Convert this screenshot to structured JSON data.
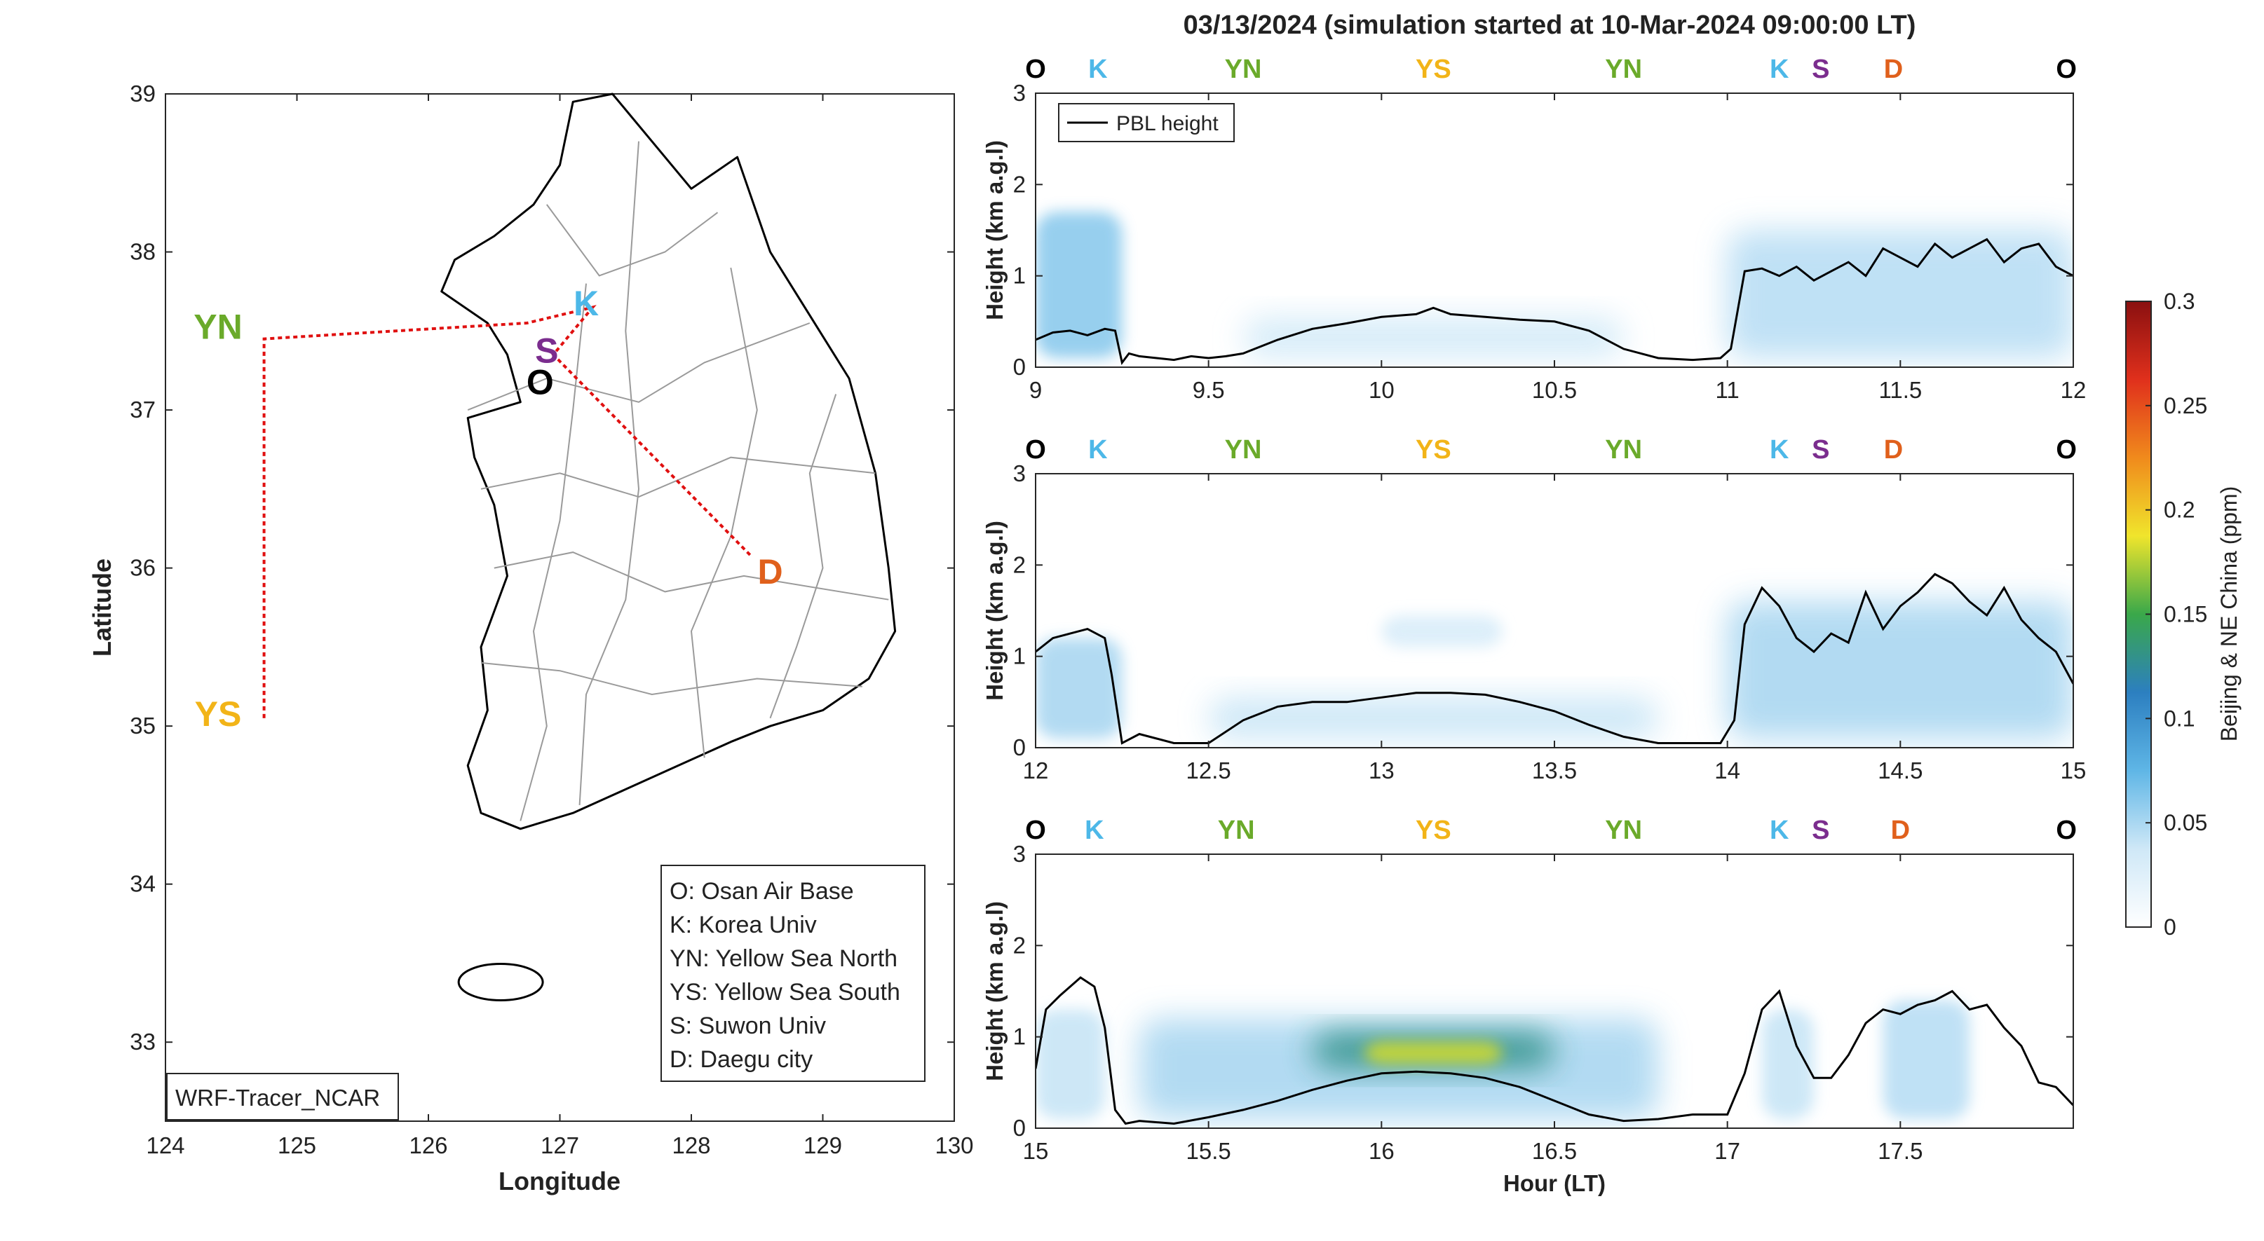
{
  "figure_title": "03/13/2024 (simulation started at 10-Mar-2024 09:00:00 LT)",
  "map": {
    "xlabel": "Longitude",
    "ylabel": "Latitude",
    "xticks": [
      124,
      125,
      126,
      127,
      128,
      129,
      130
    ],
    "yticks": [
      33,
      34,
      35,
      36,
      37,
      38,
      39
    ],
    "xlim": [
      124,
      130
    ],
    "ylim": [
      32.5,
      39
    ],
    "tag": "WRF-Tracer_NCAR",
    "sites": [
      {
        "code": "K",
        "lon": 127.2,
        "lat": 37.6,
        "color": "#4db8e8"
      },
      {
        "code": "S",
        "lon": 126.9,
        "lat": 37.3,
        "color": "#7b2d8e"
      },
      {
        "code": "O",
        "lon": 126.85,
        "lat": 37.1,
        "color": "#000000"
      },
      {
        "code": "YN",
        "lon": 124.4,
        "lat": 37.45,
        "color": "#6aaa2a"
      },
      {
        "code": "YS",
        "lon": 124.4,
        "lat": 35.0,
        "color": "#f2b418"
      },
      {
        "code": "D",
        "lon": 128.6,
        "lat": 35.9,
        "color": "#e0601c"
      }
    ],
    "legend": [
      "O: Osan Air Base",
      "K: Korea Univ",
      "YN: Yellow Sea North",
      "YS: Yellow Sea South",
      "S: Suwon Univ",
      "D: Daegu city"
    ]
  },
  "chart_data": [
    {
      "type": "line",
      "panel": 1,
      "xlabel": "",
      "ylabel": "Height (km a.g.l)",
      "xlim": [
        9,
        12
      ],
      "ylim": [
        0,
        3
      ],
      "xticks": [
        9,
        9.5,
        10,
        10.5,
        11,
        11.5,
        12
      ],
      "xtick_labels": [
        "9",
        "9.5",
        "10",
        "10.5",
        "11",
        "11.5",
        "12"
      ],
      "yticks": [
        0,
        1,
        2,
        3
      ],
      "legend": "PBL height",
      "top_labels": [
        {
          "t": "O",
          "x": 9.0,
          "color": "#000000"
        },
        {
          "t": "K",
          "x": 9.18,
          "color": "#4db8e8"
        },
        {
          "t": "YN",
          "x": 9.6,
          "color": "#6aaa2a"
        },
        {
          "t": "YS",
          "x": 10.15,
          "color": "#f2b418"
        },
        {
          "t": "YN",
          "x": 10.7,
          "color": "#6aaa2a"
        },
        {
          "t": "K",
          "x": 11.15,
          "color": "#4db8e8"
        },
        {
          "t": "S",
          "x": 11.27,
          "color": "#7b2d8e"
        },
        {
          "t": "D",
          "x": 11.48,
          "color": "#e0601c"
        },
        {
          "t": "O",
          "x": 11.98,
          "color": "#000000"
        }
      ],
      "series": [
        {
          "name": "PBL height",
          "x": [
            9.0,
            9.05,
            9.1,
            9.15,
            9.2,
            9.23,
            9.25,
            9.27,
            9.3,
            9.35,
            9.4,
            9.45,
            9.5,
            9.55,
            9.6,
            9.7,
            9.8,
            9.9,
            10.0,
            10.1,
            10.15,
            10.2,
            10.3,
            10.4,
            10.5,
            10.6,
            10.65,
            10.7,
            10.8,
            10.9,
            10.98,
            11.01,
            11.05,
            11.1,
            11.15,
            11.2,
            11.25,
            11.3,
            11.35,
            11.4,
            11.45,
            11.5,
            11.55,
            11.6,
            11.65,
            11.7,
            11.75,
            11.8,
            11.85,
            11.9,
            11.95,
            12.0
          ],
          "y": [
            0.3,
            0.38,
            0.4,
            0.35,
            0.42,
            0.4,
            0.05,
            0.15,
            0.12,
            0.1,
            0.08,
            0.12,
            0.1,
            0.12,
            0.15,
            0.3,
            0.42,
            0.48,
            0.55,
            0.58,
            0.65,
            0.58,
            0.55,
            0.52,
            0.5,
            0.4,
            0.3,
            0.2,
            0.1,
            0.08,
            0.1,
            0.2,
            1.05,
            1.08,
            1.0,
            1.1,
            0.95,
            1.05,
            1.15,
            1.0,
            1.3,
            1.2,
            1.1,
            1.35,
            1.2,
            1.3,
            1.4,
            1.15,
            1.3,
            1.35,
            1.1,
            1.0
          ]
        }
      ],
      "tracer_blobs": [
        {
          "x0": 9.0,
          "x1": 9.25,
          "y0": 0.1,
          "y1": 1.7,
          "c": 0.06
        },
        {
          "x0": 9.6,
          "x1": 10.7,
          "y0": 0.1,
          "y1": 0.55,
          "c": 0.035
        },
        {
          "x0": 11.0,
          "x1": 12.0,
          "y0": 0.1,
          "y1": 1.5,
          "c": 0.045
        }
      ]
    },
    {
      "type": "line",
      "panel": 2,
      "xlabel": "",
      "ylabel": "Height (km a.g.l)",
      "xlim": [
        12,
        15
      ],
      "ylim": [
        0,
        3
      ],
      "xticks": [
        12,
        12.5,
        13,
        13.5,
        14,
        14.5,
        15
      ],
      "xtick_labels": [
        "12",
        "12.5",
        "13",
        "13.5",
        "14",
        "14.5",
        "15"
      ],
      "yticks": [
        0,
        1,
        2,
        3
      ],
      "top_labels": [
        {
          "t": "O",
          "x": 12.0,
          "color": "#000000"
        },
        {
          "t": "K",
          "x": 12.18,
          "color": "#4db8e8"
        },
        {
          "t": "YN",
          "x": 12.6,
          "color": "#6aaa2a"
        },
        {
          "t": "YS",
          "x": 13.15,
          "color": "#f2b418"
        },
        {
          "t": "YN",
          "x": 13.7,
          "color": "#6aaa2a"
        },
        {
          "t": "K",
          "x": 14.15,
          "color": "#4db8e8"
        },
        {
          "t": "S",
          "x": 14.27,
          "color": "#7b2d8e"
        },
        {
          "t": "D",
          "x": 14.48,
          "color": "#e0601c"
        },
        {
          "t": "O",
          "x": 14.98,
          "color": "#000000"
        }
      ],
      "series": [
        {
          "name": "PBL height",
          "x": [
            12.0,
            12.05,
            12.1,
            12.15,
            12.2,
            12.22,
            12.25,
            12.3,
            12.35,
            12.4,
            12.5,
            12.6,
            12.7,
            12.8,
            12.9,
            13.0,
            13.1,
            13.2,
            13.3,
            13.4,
            13.5,
            13.6,
            13.7,
            13.8,
            13.9,
            13.98,
            14.02,
            14.05,
            14.1,
            14.15,
            14.2,
            14.25,
            14.3,
            14.35,
            14.4,
            14.45,
            14.5,
            14.55,
            14.6,
            14.65,
            14.7,
            14.75,
            14.8,
            14.85,
            14.9,
            14.95,
            15.0
          ],
          "y": [
            1.05,
            1.2,
            1.25,
            1.3,
            1.2,
            0.8,
            0.05,
            0.15,
            0.1,
            0.05,
            0.05,
            0.3,
            0.45,
            0.5,
            0.5,
            0.55,
            0.6,
            0.6,
            0.58,
            0.5,
            0.4,
            0.25,
            0.12,
            0.05,
            0.05,
            0.05,
            0.3,
            1.35,
            1.75,
            1.55,
            1.2,
            1.05,
            1.25,
            1.15,
            1.7,
            1.3,
            1.55,
            1.7,
            1.9,
            1.8,
            1.6,
            1.45,
            1.75,
            1.4,
            1.2,
            1.05,
            0.7
          ]
        }
      ],
      "tracer_blobs": [
        {
          "x0": 12.0,
          "x1": 12.25,
          "y0": 0.1,
          "y1": 1.2,
          "c": 0.05
        },
        {
          "x0": 12.5,
          "x1": 13.8,
          "y0": 0.1,
          "y1": 0.55,
          "c": 0.04
        },
        {
          "x0": 13.0,
          "x1": 13.35,
          "y0": 1.1,
          "y1": 1.45,
          "c": 0.03
        },
        {
          "x0": 14.0,
          "x1": 15.0,
          "y0": 0.1,
          "y1": 1.6,
          "c": 0.05
        }
      ]
    },
    {
      "type": "line",
      "panel": 3,
      "xlabel": "Hour (LT)",
      "ylabel": "Height (km a.g.l)",
      "xlim": [
        15,
        18
      ],
      "ylim": [
        0,
        3
      ],
      "xticks": [
        15,
        15.5,
        16,
        16.5,
        17,
        17.5
      ],
      "xtick_labels": [
        "15",
        "15.5",
        "16",
        "16.5",
        "17",
        "17.5"
      ],
      "yticks": [
        0,
        1,
        2,
        3
      ],
      "top_labels": [
        {
          "t": "O",
          "x": 15.0,
          "color": "#000000"
        },
        {
          "t": "K",
          "x": 15.17,
          "color": "#4db8e8"
        },
        {
          "t": "YN",
          "x": 15.58,
          "color": "#6aaa2a"
        },
        {
          "t": "YS",
          "x": 16.15,
          "color": "#f2b418"
        },
        {
          "t": "YN",
          "x": 16.7,
          "color": "#6aaa2a"
        },
        {
          "t": "K",
          "x": 17.15,
          "color": "#4db8e8"
        },
        {
          "t": "S",
          "x": 17.27,
          "color": "#7b2d8e"
        },
        {
          "t": "D",
          "x": 17.5,
          "color": "#e0601c"
        },
        {
          "t": "O",
          "x": 17.98,
          "color": "#000000"
        }
      ],
      "series": [
        {
          "name": "PBL height",
          "x": [
            15.0,
            15.03,
            15.07,
            15.1,
            15.13,
            15.17,
            15.2,
            15.23,
            15.26,
            15.3,
            15.4,
            15.5,
            15.6,
            15.7,
            15.8,
            15.9,
            16.0,
            16.1,
            16.2,
            16.3,
            16.4,
            16.5,
            16.6,
            16.7,
            16.8,
            16.9,
            17.0,
            17.05,
            17.1,
            17.15,
            17.2,
            17.25,
            17.3,
            17.35,
            17.4,
            17.45,
            17.5,
            17.55,
            17.6,
            17.65,
            17.7,
            17.75,
            17.8,
            17.85,
            17.9,
            17.95,
            18.0
          ],
          "y": [
            0.65,
            1.3,
            1.45,
            1.55,
            1.65,
            1.55,
            1.1,
            0.2,
            0.05,
            0.08,
            0.05,
            0.12,
            0.2,
            0.3,
            0.42,
            0.52,
            0.6,
            0.62,
            0.6,
            0.55,
            0.45,
            0.3,
            0.15,
            0.08,
            0.1,
            0.15,
            0.15,
            0.6,
            1.3,
            1.5,
            0.9,
            0.55,
            0.55,
            0.8,
            1.15,
            1.3,
            1.25,
            1.35,
            1.4,
            1.5,
            1.3,
            1.35,
            1.1,
            0.9,
            0.5,
            0.45,
            0.25
          ]
        }
      ],
      "tracer_blobs": [
        {
          "x0": 15.0,
          "x1": 15.2,
          "y0": 0.1,
          "y1": 1.3,
          "c": 0.04
        },
        {
          "x0": 15.3,
          "x1": 16.8,
          "y0": 0.1,
          "y1": 1.2,
          "c": 0.05
        },
        {
          "x0": 15.8,
          "x1": 16.5,
          "y0": 0.65,
          "y1": 1.05,
          "c": 0.13
        },
        {
          "x0": 15.95,
          "x1": 16.35,
          "y0": 0.7,
          "y1": 0.95,
          "c": 0.18
        },
        {
          "x0": 17.1,
          "x1": 17.25,
          "y0": 0.1,
          "y1": 1.3,
          "c": 0.04
        },
        {
          "x0": 17.45,
          "x1": 17.7,
          "y0": 0.1,
          "y1": 1.4,
          "c": 0.045
        }
      ]
    }
  ],
  "colorbar": {
    "label": "Beijing & NE China (ppm)",
    "ticks": [
      0,
      0.05,
      0.1,
      0.15,
      0.2,
      0.25,
      0.3
    ],
    "tick_labels": [
      "0",
      "0.05",
      "0.1",
      "0.15",
      "0.2",
      "0.25",
      "0.3"
    ],
    "range": [
      0,
      0.3
    ],
    "stops": [
      "#ffffff",
      "#cfe8f7",
      "#5fb6e6",
      "#2c7fc0",
      "#3aa84a",
      "#f0e52c",
      "#f08a1c",
      "#e0301c",
      "#8a1010"
    ]
  }
}
